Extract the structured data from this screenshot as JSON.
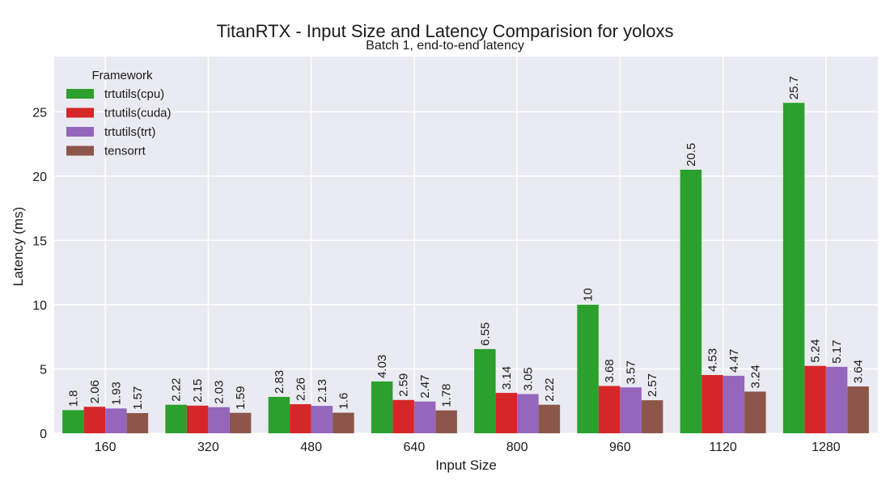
{
  "chart_data": {
    "type": "bar",
    "title": "TitanRTX - Input Size and Latency Comparision for yoloxs",
    "subtitle": "Batch 1, end-to-end latency",
    "xlabel": "Input Size",
    "ylabel": "Latency (ms)",
    "categories": [
      "160",
      "320",
      "480",
      "640",
      "800",
      "960",
      "1120",
      "1280"
    ],
    "ylim": [
      0,
      29.3
    ],
    "yticks": [
      0,
      5,
      10,
      15,
      20,
      25
    ],
    "grid": true,
    "legend": {
      "title": "Framework",
      "position": "top-left"
    },
    "series": [
      {
        "name": "trtutils(cpu)",
        "color": "#2ca02c",
        "values": [
          1.8,
          2.22,
          2.83,
          4.03,
          6.55,
          10,
          20.5,
          25.7
        ],
        "labels": [
          "1.8",
          "2.22",
          "2.83",
          "4.03",
          "6.55",
          "10",
          "20.5",
          "25.7"
        ]
      },
      {
        "name": "trtutils(cuda)",
        "color": "#d62728",
        "values": [
          2.06,
          2.15,
          2.26,
          2.59,
          3.14,
          3.68,
          4.53,
          5.24
        ],
        "labels": [
          "2.06",
          "2.15",
          "2.26",
          "2.59",
          "3.14",
          "3.68",
          "4.53",
          "5.24"
        ]
      },
      {
        "name": "trtutils(trt)",
        "color": "#9467bd",
        "values": [
          1.93,
          2.03,
          2.13,
          2.47,
          3.05,
          3.57,
          4.47,
          5.17
        ],
        "labels": [
          "1.93",
          "2.03",
          "2.13",
          "2.47",
          "3.05",
          "3.57",
          "4.47",
          "5.17"
        ]
      },
      {
        "name": "tensorrt",
        "color": "#8c564b",
        "values": [
          1.57,
          1.59,
          1.6,
          1.78,
          2.22,
          2.57,
          3.24,
          3.64
        ],
        "labels": [
          "1.57",
          "1.59",
          "1.6",
          "1.78",
          "2.22",
          "2.57",
          "3.24",
          "3.64"
        ]
      }
    ],
    "plot_background": "#eaeaf2",
    "grid_color": "#ffffff"
  }
}
